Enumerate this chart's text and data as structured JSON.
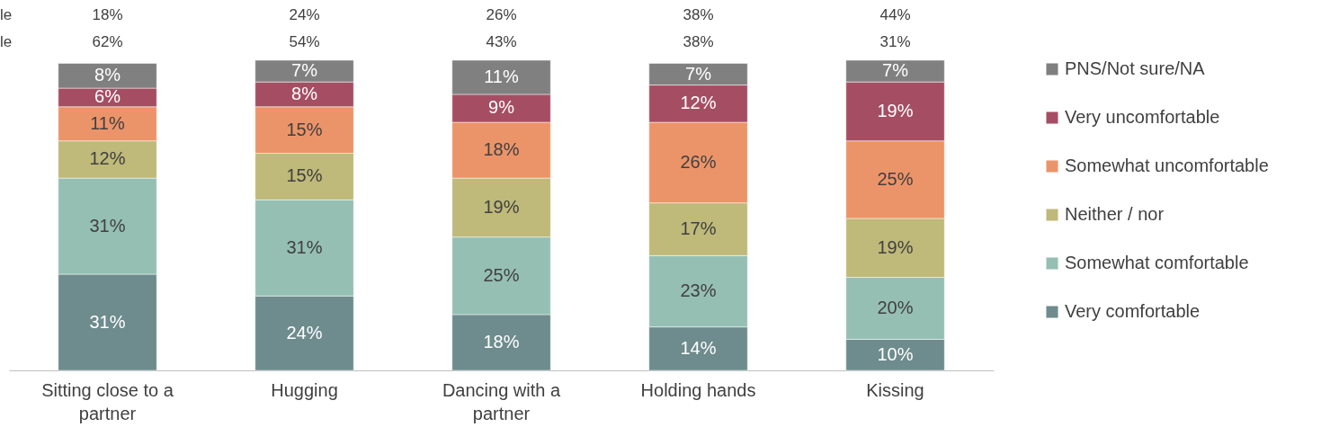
{
  "chart_data": {
    "type": "bar",
    "stacked": true,
    "legend": "right",
    "grid": false,
    "categories": [
      "Sitting close to a partner",
      "Hugging",
      "Dancing with a partner",
      "Holding hands",
      "Kissing"
    ],
    "series": [
      {
        "name": "Very comfortable",
        "color": "#6e8b8d",
        "values": [
          31,
          24,
          18,
          14,
          10
        ],
        "value_labels": [
          "31%",
          "24%",
          "18%",
          "14%",
          "10%"
        ]
      },
      {
        "name": "Somewhat comfortable",
        "color": "#95bfb3",
        "values": [
          31,
          31,
          25,
          23,
          20
        ],
        "value_labels": [
          "31%",
          "31%",
          "25%",
          "23%",
          "20%"
        ]
      },
      {
        "name": "Neither / nor",
        "color": "#bfb97a",
        "values": [
          12,
          15,
          19,
          17,
          19
        ],
        "value_labels": [
          "12%",
          "15%",
          "19%",
          "17%",
          "19%"
        ]
      },
      {
        "name": "Somewhat uncomfortable",
        "color": "#ec9469",
        "values": [
          11,
          15,
          18,
          26,
          25
        ],
        "value_labels": [
          "11%",
          "15%",
          "18%",
          "26%",
          "25%"
        ]
      },
      {
        "name": "Very uncomfortable",
        "color": "#a54e63",
        "values": [
          6,
          8,
          9,
          12,
          19
        ],
        "value_labels": [
          "6%",
          "8%",
          "9%",
          "12%",
          "19%"
        ]
      },
      {
        "name": "PNS/Not sure/NA",
        "color": "#808080",
        "values": [
          8,
          7,
          11,
          7,
          7
        ],
        "value_labels": [
          "8%",
          "7%",
          "11%",
          "7%",
          "7%"
        ]
      }
    ],
    "annotations": [
      "le",
      "18%",
      "24%",
      "26%",
      "38%",
      "44%",
      "le",
      "62%",
      "54%",
      "43%",
      "38%",
      "31%"
    ]
  }
}
